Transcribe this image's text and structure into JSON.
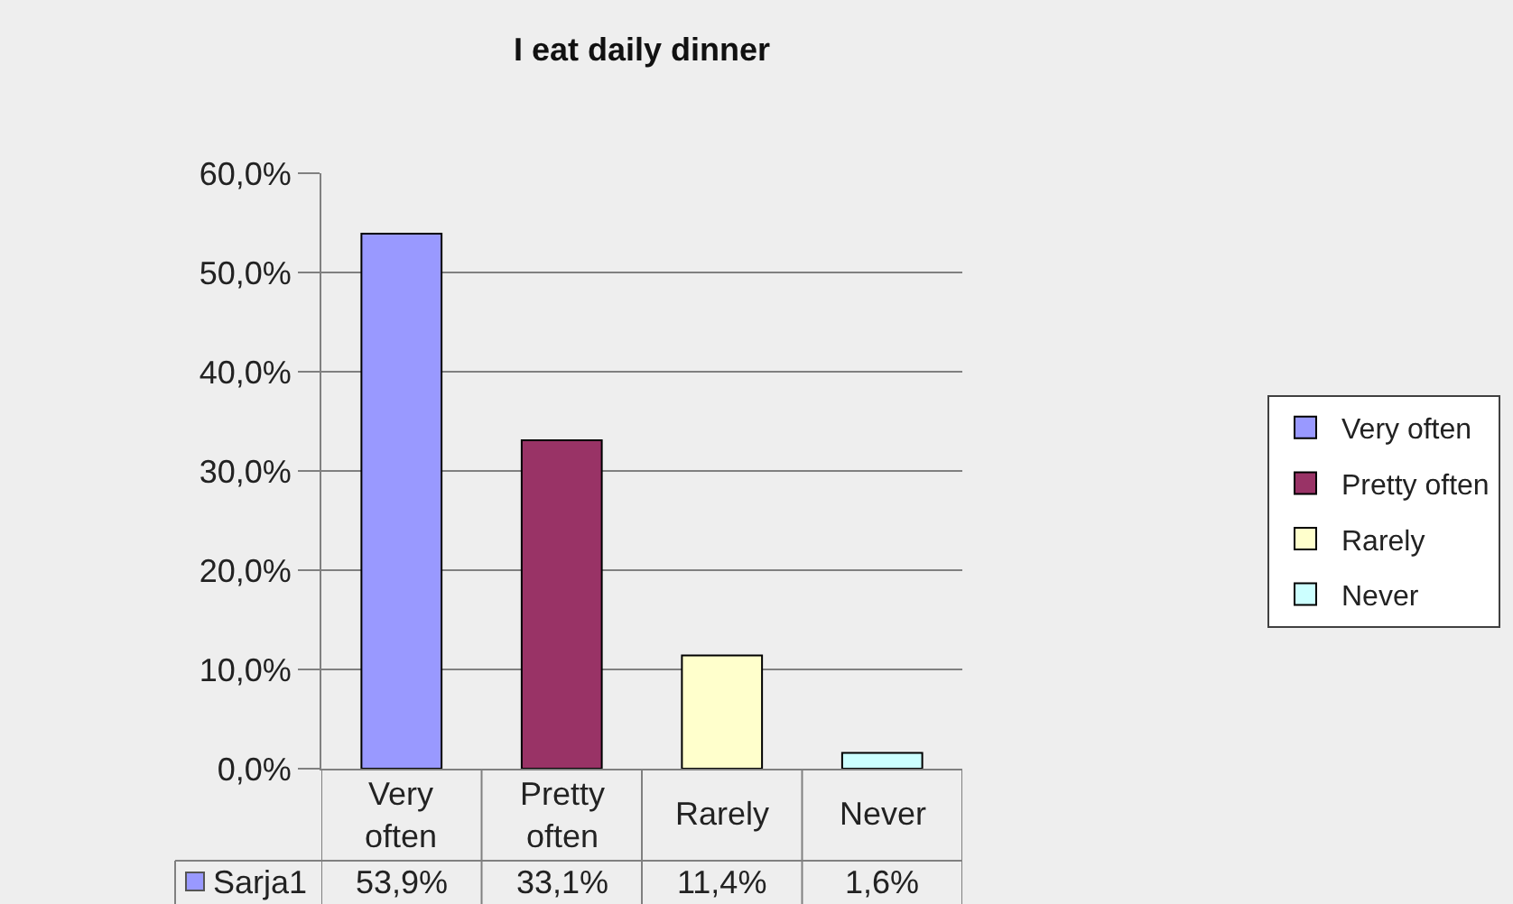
{
  "chart_data": {
    "type": "bar",
    "title": "I eat daily dinner",
    "categories": [
      "Very often",
      "Pretty often",
      "Rarely",
      "Never"
    ],
    "series": [
      {
        "name": "Very often",
        "color": "#9999ff",
        "values": [
          53.9,
          null,
          null,
          null
        ],
        "value_labels": [
          "53,9%",
          null,
          null,
          null
        ]
      },
      {
        "name": "Pretty often",
        "color": "#993366",
        "values": [
          null,
          33.1,
          null,
          null
        ],
        "value_labels": [
          null,
          "33,1%",
          null,
          null
        ]
      },
      {
        "name": "Rarely",
        "color": "#ffffcc",
        "values": [
          null,
          null,
          11.4,
          null
        ],
        "value_labels": [
          null,
          null,
          "11,4%",
          null
        ]
      },
      {
        "name": "Never",
        "color": "#ccffff",
        "values": [
          null,
          null,
          null,
          1.6
        ],
        "value_labels": [
          null,
          null,
          null,
          "1,6%"
        ]
      }
    ],
    "annotations": [
      "Sarja1"
    ],
    "ylim": [
      0,
      60
    ],
    "yticks": [
      {
        "value": 0,
        "label": "0,0%"
      },
      {
        "value": 10,
        "label": "10,0%"
      },
      {
        "value": 20,
        "label": "20,0%"
      },
      {
        "value": 30,
        "label": "30,0%"
      },
      {
        "value": 40,
        "label": "40,0%"
      },
      {
        "value": 50,
        "label": "50,0%"
      },
      {
        "value": 60,
        "label": "60,0%"
      }
    ],
    "grid": "y",
    "legend": "right"
  }
}
